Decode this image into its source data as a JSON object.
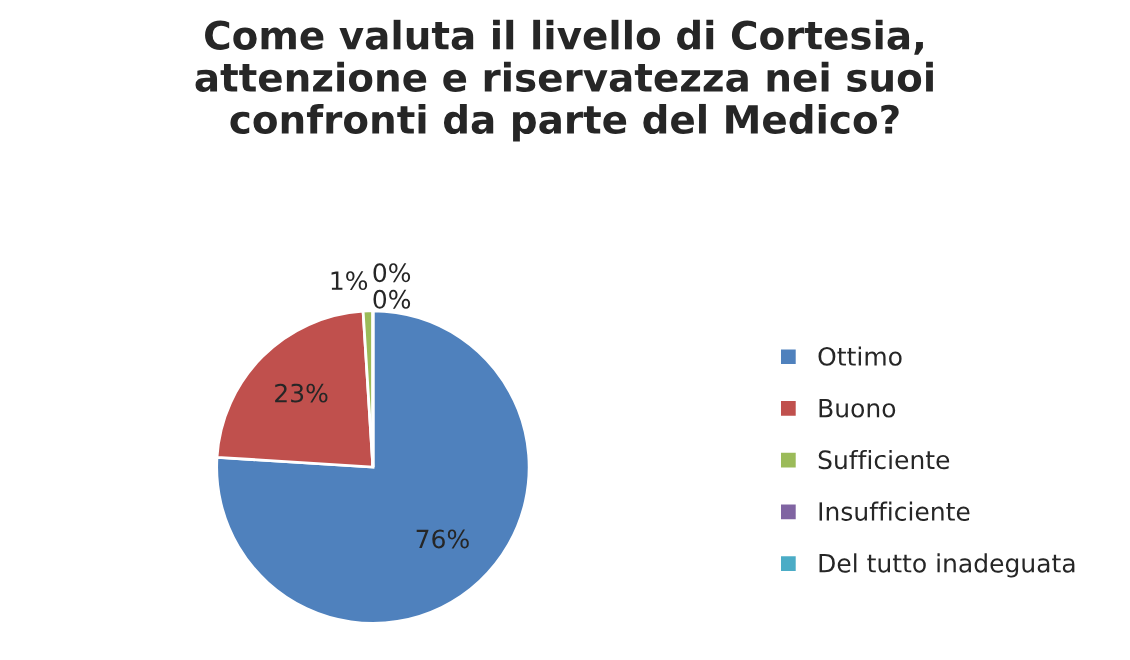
{
  "chart_data": {
    "type": "pie",
    "title": "Come valuta il livello di Cortesia,\nattenzione e riservatezza nei suoi\nconfronti da parte del Medico?",
    "categories": [
      "Ottimo",
      "Buono",
      "Sufficiente",
      "Insufficiente",
      "Del tutto inadeguata"
    ],
    "values": [
      76,
      23,
      1,
      0,
      0
    ],
    "value_labels": [
      "76%",
      "23%",
      "1%",
      "0%",
      "0%"
    ],
    "colors": [
      "#4f81bd",
      "#c0504d",
      "#9bbb59",
      "#8064a2",
      "#4bacc6"
    ],
    "legend": "right"
  }
}
